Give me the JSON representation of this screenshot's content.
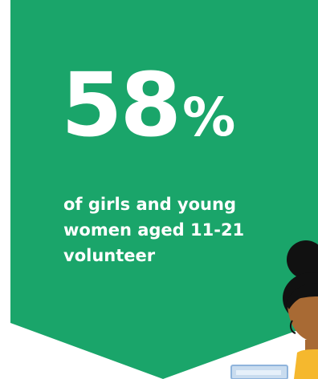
{
  "stat": {
    "number": "58",
    "percent": "%"
  },
  "caption": {
    "text": "of girls and young women aged 11-21 volunteer"
  },
  "colors": {
    "banner": "#1aa56a",
    "text": "#ffffff",
    "hair": "#111111",
    "skin": "#a86a34",
    "shirt": "#f5b82e",
    "laptop": "#c9dcef",
    "laptop_edge": "#8fb4dc"
  },
  "icons": {
    "illustration": "girl-with-laptop-illustration"
  }
}
